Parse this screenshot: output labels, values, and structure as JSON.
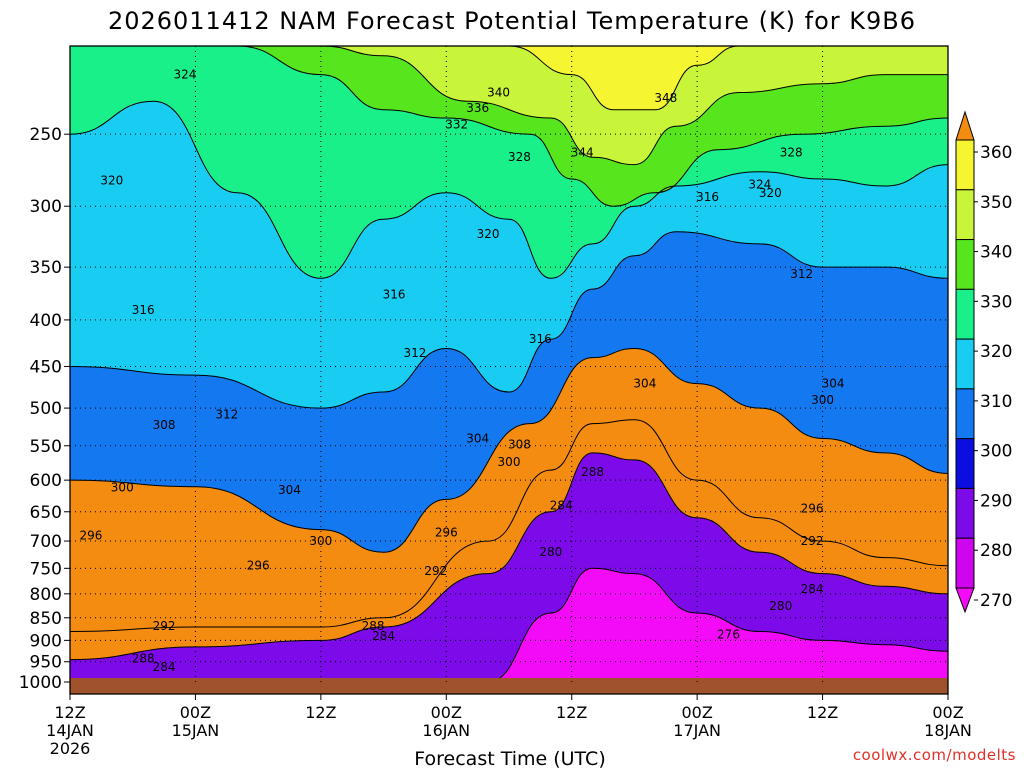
{
  "chart_data": {
    "type": "heatmap",
    "title": "2026011412 NAM Forecast Potential Temperature (K) for K9B6",
    "xlabel": "Forecast Time (UTC)",
    "ylabel": "",
    "credit": "coolwx.com/modelts",
    "x_range_hours": [
      0,
      84
    ],
    "y_range_hpa": [
      1000,
      200
    ],
    "y_ticks": [
      "250",
      "300",
      "350",
      "400",
      "450",
      "500",
      "550",
      "600",
      "650",
      "700",
      "750",
      "800",
      "850",
      "900",
      "950",
      "1000"
    ],
    "x_ticks": [
      {
        "hour": 0,
        "time": "12Z",
        "date": "14JAN",
        "year": "2026"
      },
      {
        "hour": 12,
        "time": "00Z",
        "date": "15JAN",
        "year": ""
      },
      {
        "hour": 24,
        "time": "12Z",
        "date": "",
        "year": ""
      },
      {
        "hour": 36,
        "time": "00Z",
        "date": "16JAN",
        "year": ""
      },
      {
        "hour": 48,
        "time": "12Z",
        "date": "",
        "year": ""
      },
      {
        "hour": 60,
        "time": "00Z",
        "date": "17JAN",
        "year": ""
      },
      {
        "hour": 72,
        "time": "12Z",
        "date": "",
        "year": ""
      },
      {
        "hour": 84,
        "time": "00Z",
        "date": "18JAN",
        "year": ""
      }
    ],
    "colorbar": {
      "levels": [
        "360",
        "350",
        "340",
        "330",
        "320",
        "310",
        "300",
        "290",
        "280",
        "270"
      ],
      "colors": [
        "#f38c10",
        "#f5f531",
        "#c8f53a",
        "#57e61e",
        "#19f08a",
        "#19cdf2",
        "#1478f0",
        "#0a0ee0",
        "#7d0ae8",
        "#ce05ee",
        "#f30af6"
      ]
    },
    "fill_colors": {
      "band_270": "#f30af6",
      "band_280": "#ce05ee",
      "band_290": "#7d0ae8",
      "band_300": "#0a0ee0",
      "band_310": "#1478f0",
      "band_320": "#19cdf2",
      "band_330": "#19f08a",
      "band_340": "#57e61e",
      "band_350": "#c8f53a",
      "band_360": "#f5f531",
      "band_370": "#f38c10",
      "ground": "#a0522d"
    },
    "isotherm_profiles": [
      {
        "theta": 280,
        "points": [
          [
            0,
            1000
          ],
          [
            30,
            1000
          ],
          [
            40,
            1000
          ],
          [
            46,
            840
          ],
          [
            50,
            750
          ],
          [
            54,
            760
          ],
          [
            60,
            840
          ],
          [
            66,
            880
          ],
          [
            72,
            900
          ],
          [
            78,
            910
          ],
          [
            84,
            925
          ]
        ]
      },
      {
        "theta": 288,
        "points": [
          [
            0,
            945
          ],
          [
            12,
            915
          ],
          [
            24,
            900
          ],
          [
            30,
            870
          ],
          [
            40,
            760
          ],
          [
            46,
            650
          ],
          [
            50,
            560
          ],
          [
            54,
            570
          ],
          [
            60,
            660
          ],
          [
            66,
            720
          ],
          [
            72,
            760
          ],
          [
            78,
            785
          ],
          [
            84,
            800
          ]
        ]
      },
      {
        "theta": 292,
        "points": [
          [
            0,
            880
          ],
          [
            12,
            870
          ],
          [
            24,
            870
          ],
          [
            30,
            850
          ],
          [
            40,
            700
          ],
          [
            46,
            585
          ],
          [
            50,
            520
          ],
          [
            54,
            515
          ],
          [
            60,
            600
          ],
          [
            66,
            660
          ],
          [
            72,
            700
          ],
          [
            78,
            730
          ],
          [
            84,
            745
          ]
        ]
      },
      {
        "theta": 300,
        "points": [
          [
            0,
            600
          ],
          [
            12,
            610
          ],
          [
            24,
            680
          ],
          [
            30,
            720
          ],
          [
            36,
            630
          ],
          [
            44,
            520
          ],
          [
            50,
            440
          ],
          [
            54,
            430
          ],
          [
            60,
            470
          ],
          [
            66,
            500
          ],
          [
            72,
            540
          ],
          [
            78,
            560
          ],
          [
            84,
            590
          ]
        ]
      },
      {
        "theta": 310,
        "points": [
          [
            0,
            450
          ],
          [
            12,
            460
          ],
          [
            24,
            500
          ],
          [
            30,
            480
          ],
          [
            36,
            430
          ],
          [
            42,
            480
          ],
          [
            46,
            420
          ],
          [
            50,
            370
          ],
          [
            54,
            340
          ],
          [
            58,
            320
          ],
          [
            66,
            330
          ],
          [
            72,
            350
          ],
          [
            78,
            350
          ],
          [
            84,
            360
          ]
        ]
      },
      {
        "theta": 320,
        "points": [
          [
            0,
            250
          ],
          [
            8,
            230
          ],
          [
            16,
            290
          ],
          [
            24,
            360
          ],
          [
            30,
            310
          ],
          [
            36,
            290
          ],
          [
            42,
            310
          ],
          [
            46,
            360
          ],
          [
            50,
            330
          ],
          [
            54,
            300
          ],
          [
            58,
            285
          ],
          [
            66,
            275
          ],
          [
            72,
            280
          ],
          [
            78,
            285
          ],
          [
            84,
            270
          ]
        ]
      },
      {
        "theta": 330,
        "points": [
          [
            0,
            200
          ],
          [
            8,
            200
          ],
          [
            16,
            200
          ],
          [
            24,
            215
          ],
          [
            30,
            235
          ],
          [
            36,
            240
          ],
          [
            44,
            250
          ],
          [
            48,
            280
          ],
          [
            52,
            300
          ],
          [
            56,
            290
          ],
          [
            62,
            260
          ],
          [
            70,
            250
          ],
          [
            78,
            245
          ],
          [
            84,
            240
          ]
        ]
      },
      {
        "theta": 340,
        "points": [
          [
            24,
            200
          ],
          [
            30,
            205
          ],
          [
            38,
            230
          ],
          [
            46,
            240
          ],
          [
            50,
            265
          ],
          [
            54,
            270
          ],
          [
            58,
            245
          ],
          [
            64,
            225
          ],
          [
            72,
            220
          ],
          [
            78,
            215
          ],
          [
            84,
            215
          ]
        ]
      },
      {
        "theta": 350,
        "points": [
          [
            42,
            200
          ],
          [
            48,
            215
          ],
          [
            52,
            235
          ],
          [
            56,
            235
          ],
          [
            60,
            210
          ],
          [
            64,
            200
          ]
        ]
      }
    ],
    "contour_labels": [
      {
        "text": "324",
        "hour": 11,
        "hpa": 215
      },
      {
        "text": "340",
        "hour": 41,
        "hpa": 225
      },
      {
        "text": "336",
        "hour": 39,
        "hpa": 234
      },
      {
        "text": "332",
        "hour": 37,
        "hpa": 244
      },
      {
        "text": "348",
        "hour": 57,
        "hpa": 228
      },
      {
        "text": "328",
        "hour": 43,
        "hpa": 265
      },
      {
        "text": "344",
        "hour": 49,
        "hpa": 262
      },
      {
        "text": "328",
        "hour": 69,
        "hpa": 262
      },
      {
        "text": "320",
        "hour": 4,
        "hpa": 281
      },
      {
        "text": "316",
        "hour": 61,
        "hpa": 293
      },
      {
        "text": "324",
        "hour": 66,
        "hpa": 284
      },
      {
        "text": "320",
        "hour": 67,
        "hpa": 290
      },
      {
        "text": "320",
        "hour": 40,
        "hpa": 322
      },
      {
        "text": "312",
        "hour": 70,
        "hpa": 356
      },
      {
        "text": "316",
        "hour": 31,
        "hpa": 375
      },
      {
        "text": "316",
        "hour": 7,
        "hpa": 390
      },
      {
        "text": "316",
        "hour": 45,
        "hpa": 420
      },
      {
        "text": "312",
        "hour": 33,
        "hpa": 435
      },
      {
        "text": "304",
        "hour": 55,
        "hpa": 470
      },
      {
        "text": "304",
        "hour": 73,
        "hpa": 470
      },
      {
        "text": "300",
        "hour": 72,
        "hpa": 490
      },
      {
        "text": "312",
        "hour": 15,
        "hpa": 508
      },
      {
        "text": "308",
        "hour": 9,
        "hpa": 522
      },
      {
        "text": "304",
        "hour": 39,
        "hpa": 540
      },
      {
        "text": "308",
        "hour": 43,
        "hpa": 548
      },
      {
        "text": "300",
        "hour": 42,
        "hpa": 573
      },
      {
        "text": "288",
        "hour": 50,
        "hpa": 588
      },
      {
        "text": "300",
        "hour": 5,
        "hpa": 611
      },
      {
        "text": "304",
        "hour": 21,
        "hpa": 615
      },
      {
        "text": "284",
        "hour": 47,
        "hpa": 640
      },
      {
        "text": "296",
        "hour": 71,
        "hpa": 645
      },
      {
        "text": "296",
        "hour": 36,
        "hpa": 685
      },
      {
        "text": "296",
        "hour": 2,
        "hpa": 690
      },
      {
        "text": "300",
        "hour": 24,
        "hpa": 700
      },
      {
        "text": "292",
        "hour": 71,
        "hpa": 700
      },
      {
        "text": "280",
        "hour": 46,
        "hpa": 720
      },
      {
        "text": "296",
        "hour": 18,
        "hpa": 745
      },
      {
        "text": "292",
        "hour": 35,
        "hpa": 755
      },
      {
        "text": "284",
        "hour": 71,
        "hpa": 790
      },
      {
        "text": "280",
        "hour": 68,
        "hpa": 825
      },
      {
        "text": "292",
        "hour": 9,
        "hpa": 868
      },
      {
        "text": "288",
        "hour": 29,
        "hpa": 868
      },
      {
        "text": "284",
        "hour": 30,
        "hpa": 890
      },
      {
        "text": "276",
        "hour": 63,
        "hpa": 887
      },
      {
        "text": "288",
        "hour": 7,
        "hpa": 942
      },
      {
        "text": "284",
        "hour": 9,
        "hpa": 963
      }
    ]
  }
}
